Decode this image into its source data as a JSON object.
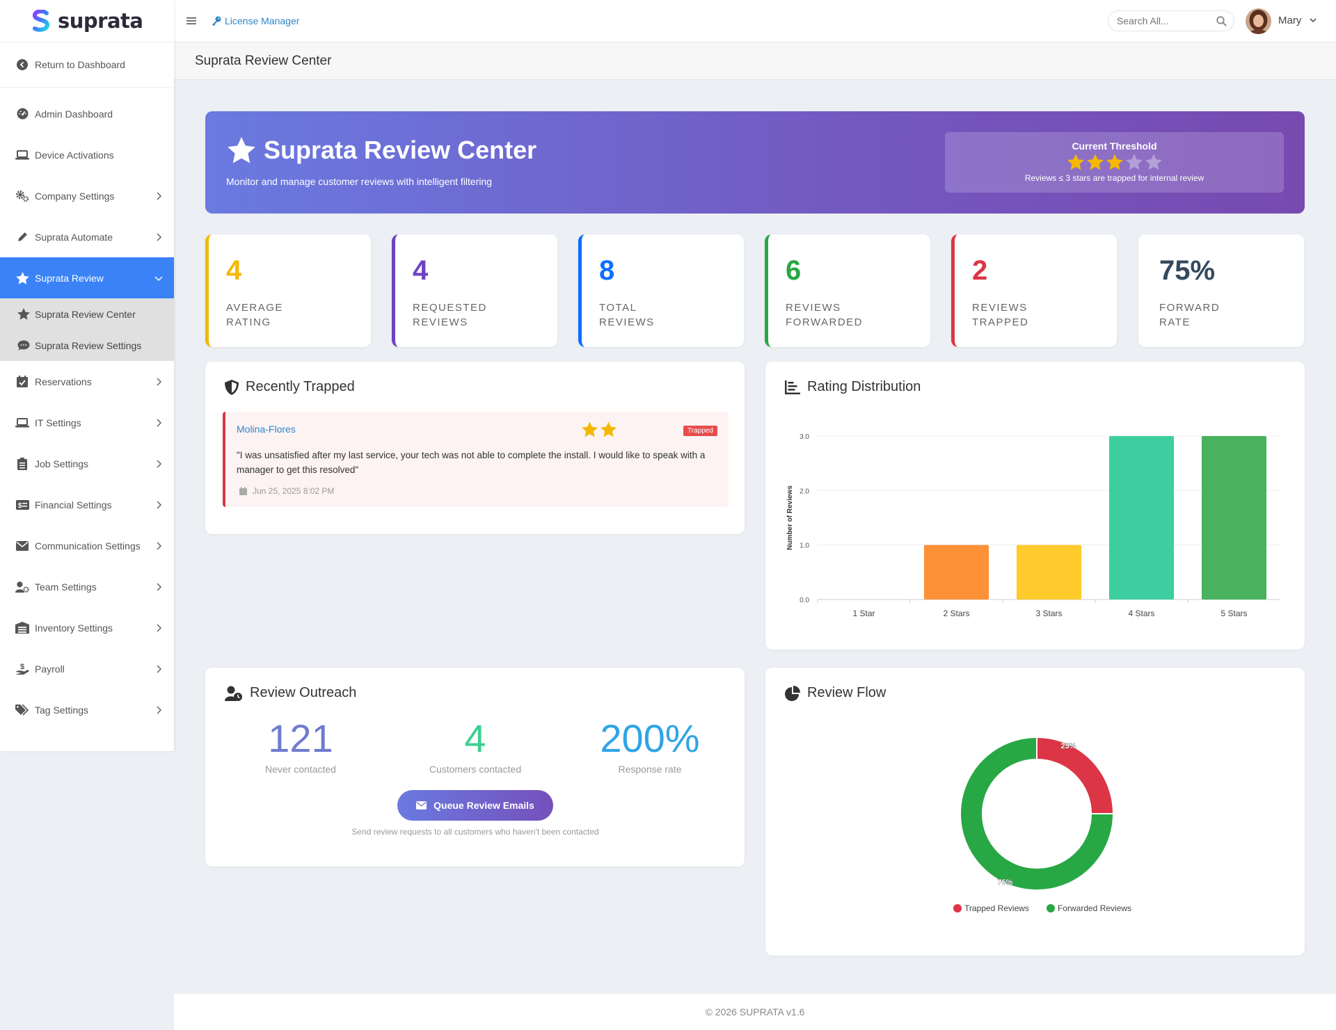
{
  "brand": {
    "name": "suprata"
  },
  "sidebar": {
    "return_label": "Return to Dashboard",
    "items": [
      {
        "label": "Admin Dashboard"
      },
      {
        "label": "Device Activations"
      },
      {
        "label": "Company Settings"
      },
      {
        "label": "Suprata Automate"
      },
      {
        "label": "Suprata Review"
      },
      {
        "label": "Reservations"
      },
      {
        "label": "IT Settings"
      },
      {
        "label": "Job Settings"
      },
      {
        "label": "Financial Settings"
      },
      {
        "label": "Communication Settings"
      },
      {
        "label": "Team Settings"
      },
      {
        "label": "Inventory Settings"
      },
      {
        "label": "Payroll"
      },
      {
        "label": "Tag Settings"
      }
    ],
    "subitems": [
      {
        "label": "Suprata Review Center"
      },
      {
        "label": "Suprata Review Settings"
      }
    ]
  },
  "topbar": {
    "license_link": "License Manager",
    "search_placeholder": "Search All...",
    "user_name": "Mary"
  },
  "page": {
    "title": "Suprata Review Center"
  },
  "hero": {
    "title": "Suprata Review Center",
    "subtitle": "Monitor and manage customer reviews with intelligent filtering",
    "threshold_label": "Current Threshold",
    "threshold_stars": 3,
    "threshold_max": 5,
    "threshold_note": "Reviews ≤ 3 stars are trapped for internal review"
  },
  "stats": [
    {
      "value": "4",
      "line1": "AVERAGE",
      "line2": "RATING",
      "color": "#f5b800"
    },
    {
      "value": "4",
      "line1": "REQUESTED",
      "line2": "REVIEWS",
      "color": "#6f42c1"
    },
    {
      "value": "8",
      "line1": "TOTAL",
      "line2": "REVIEWS",
      "color": "#0d6efd"
    },
    {
      "value": "6",
      "line1": "REVIEWS",
      "line2": "FORWARDED",
      "color": "#28a745"
    },
    {
      "value": "2",
      "line1": "REVIEWS",
      "line2": "TRAPPED",
      "color": "#dc3545"
    },
    {
      "value": "75%",
      "line1": "FORWARD",
      "line2": "RATE",
      "color": "#34495e"
    }
  ],
  "trapped": {
    "title": "Recently Trapped",
    "items": [
      {
        "name": "Molina-Flores",
        "stars": 2,
        "badge": "Trapped",
        "text": "\"I was unsatisfied after my last service, your tech was not able to complete the install. I would like to speak with a manager to get this resolved\"",
        "date": "Jun 25, 2025 8:02 PM"
      }
    ]
  },
  "rating_distribution": {
    "title": "Rating Distribution",
    "chart_data": {
      "type": "bar",
      "categories": [
        "1 Star",
        "2 Stars",
        "3 Stars",
        "4 Stars",
        "5 Stars"
      ],
      "values": [
        0,
        1,
        1,
        3,
        3
      ],
      "colors": [
        "#dc3545",
        "#fd9137",
        "#ffca2c",
        "#3ecfa0",
        "#48b25f"
      ],
      "ylabel": "Number of Reviews",
      "ylim": [
        0,
        3
      ],
      "yticks": [
        "0.0",
        "1.0",
        "2.0",
        "3.0"
      ],
      "grid": true
    }
  },
  "outreach": {
    "title": "Review Outreach",
    "metrics": [
      {
        "value": "121",
        "label": "Never contacted",
        "color": "#6f7bcf"
      },
      {
        "value": "4",
        "label": "Customers contacted",
        "color": "#3ecf8e"
      },
      {
        "value": "200%",
        "label": "Response rate",
        "color": "#2fa4e7"
      }
    ],
    "button_label": "Queue Review Emails",
    "note": "Send review requests to all customers who haven't been contacted"
  },
  "review_flow": {
    "title": "Review Flow",
    "chart_data": {
      "type": "pie",
      "labels": [
        "Trapped Reviews",
        "Forwarded Reviews"
      ],
      "values": [
        25,
        75
      ],
      "value_labels": [
        "25%",
        "75%"
      ],
      "colors": [
        "#dc3545",
        "#28a745"
      ],
      "legend": "bottom"
    }
  },
  "footer": {
    "text": "© 2026 SUPRATA v1.6"
  }
}
